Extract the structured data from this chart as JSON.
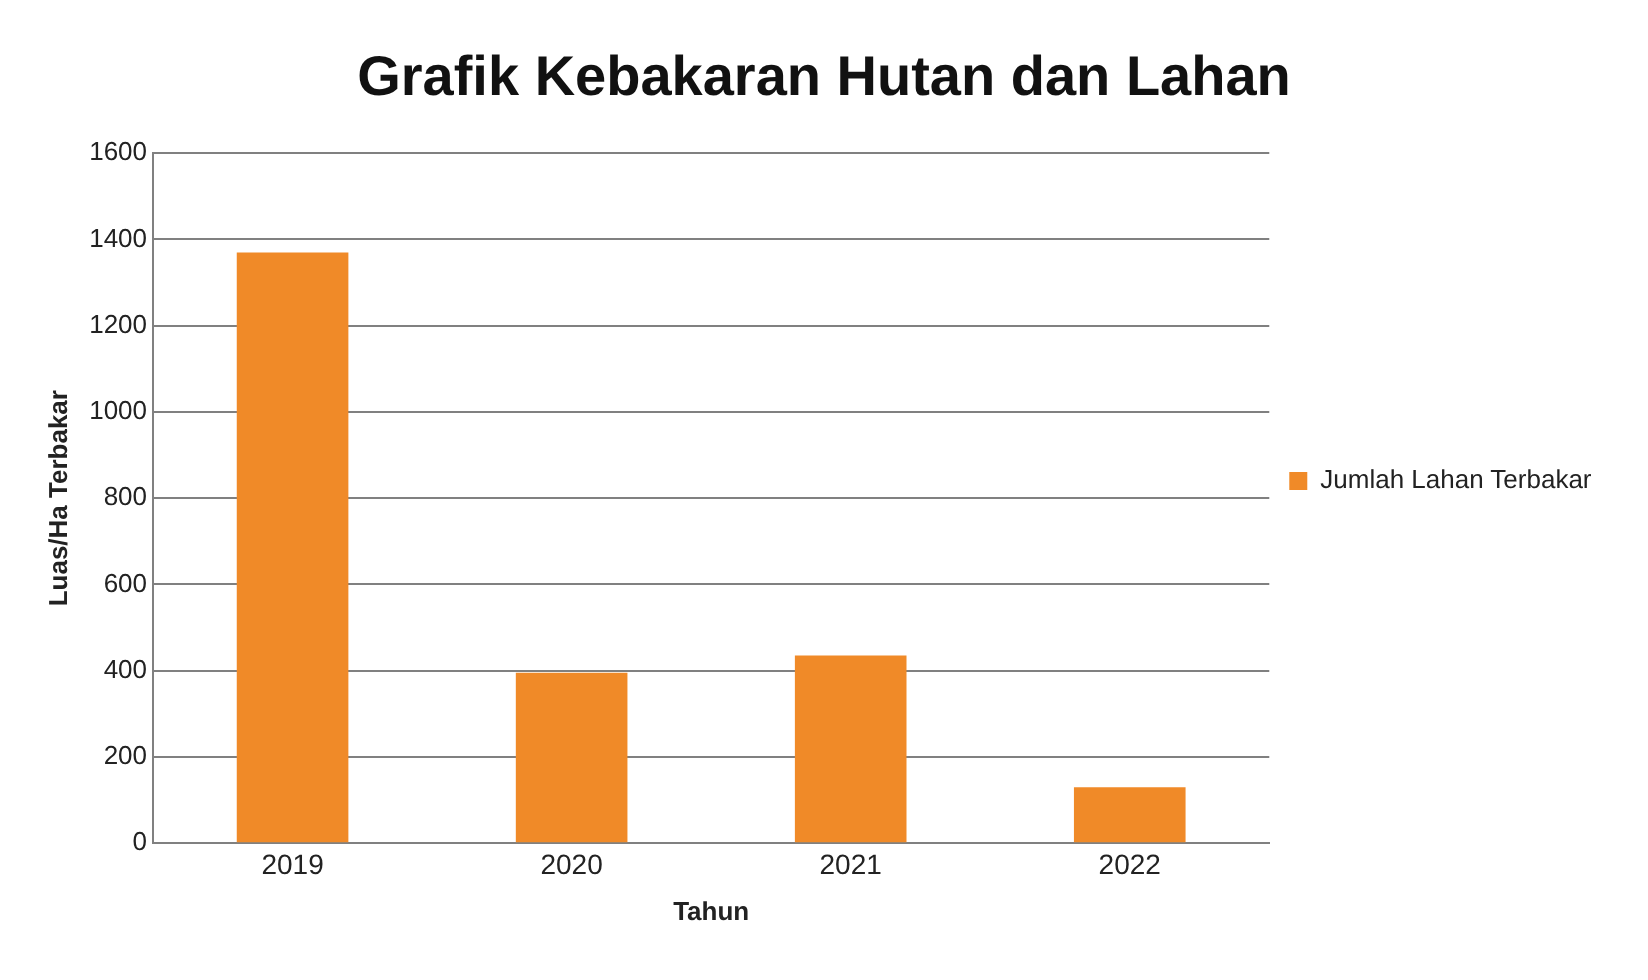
{
  "chart_data": {
    "type": "bar",
    "title": "Grafik Kebakaran Hutan dan Lahan",
    "xlabel": "Tahun",
    "ylabel": "Luas/Ha Terbakar",
    "categories": [
      "2019",
      "2020",
      "2021",
      "2022"
    ],
    "series": [
      {
        "name": "Jumlah Lahan Terbakar",
        "color": "#f08a28",
        "values": [
          1370,
          395,
          435,
          130
        ]
      }
    ],
    "ylim": [
      0,
      1600
    ],
    "yticks": [
      0,
      200,
      400,
      600,
      800,
      1000,
      1200,
      1400,
      1600
    ],
    "grid": "y",
    "legend": "right"
  }
}
